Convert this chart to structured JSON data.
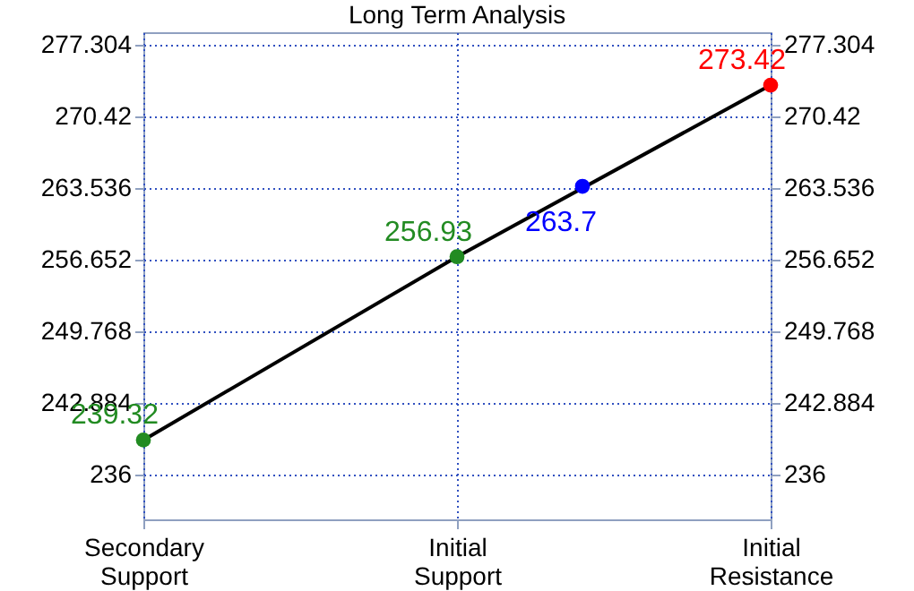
{
  "chart_data": {
    "type": "line",
    "title": "Long Term Analysis",
    "categories": [
      "Secondary Support",
      null,
      null,
      null,
      null,
      "Initial Support",
      null,
      null,
      null,
      null,
      "Initial Resistance"
    ],
    "ylim": [
      231.7,
      278.5
    ],
    "yticks": [
      236,
      242.884,
      249.768,
      256.652,
      263.536,
      270.42,
      277.304
    ],
    "y2lim": [
      231.7,
      278.5
    ],
    "y2ticks": [
      236,
      242.884,
      249.768,
      256.652,
      263.536,
      270.42,
      277.304
    ],
    "grid": true,
    "series": [
      {
        "color": "#000000",
        "marker": "none",
        "x": [
          "Secondary Support",
          "Initial Support",
          "Initial Resistance"
        ],
        "values": [
          239.32,
          256.93,
          273.42
        ]
      },
      {
        "type": "scatter",
        "marker": "circle",
        "data_labels": true,
        "color": "#228b22",
        "x": [
          "Secondary Support",
          "Initial Support"
        ],
        "values": [
          239.32,
          256.93
        ]
      },
      {
        "type": "scatter",
        "marker": "circle",
        "data_labels": true,
        "color": "#0000ff",
        "values": [
          null,
          null,
          null,
          null,
          null,
          null,
          null,
          263.7,
          null,
          null,
          null
        ]
      },
      {
        "type": "scatter",
        "marker": "circle",
        "data_labels": true,
        "color": "#ff0000",
        "x": [
          "Initial Resistance"
        ],
        "values": [
          273.42
        ]
      }
    ]
  }
}
